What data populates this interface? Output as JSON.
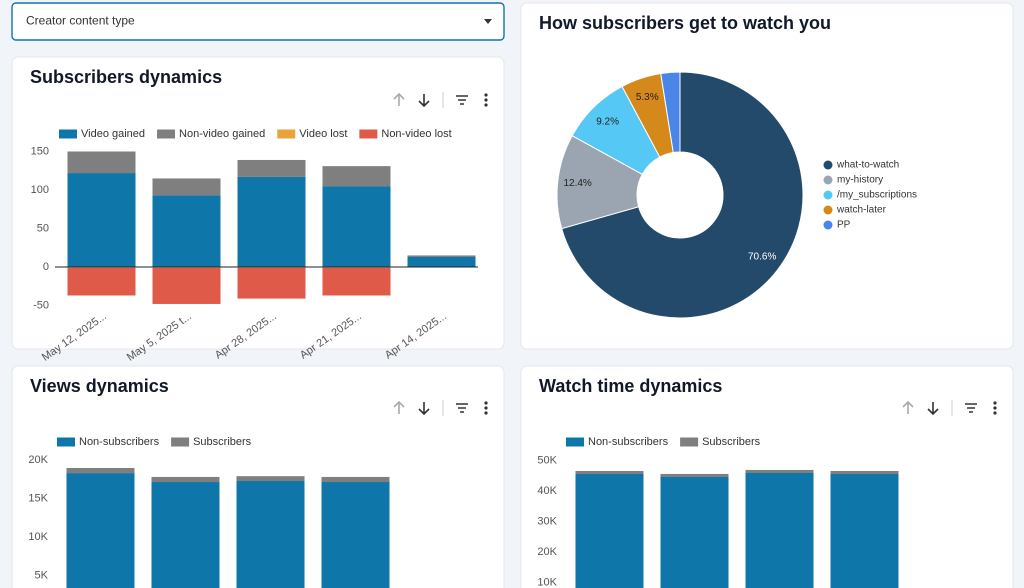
{
  "dropdown": "Creator content type",
  "chart_data": [
    {
      "type": "bar",
      "stacked": true,
      "title": "Subscribers dynamics",
      "categories": [
        "May 12, 2025...",
        "May 5, 2025 t...",
        "Apr 28, 2025...",
        "Apr 21, 2025...",
        "Apr 14, 2025..."
      ],
      "series": [
        {
          "name": "Video gained",
          "color": "#0e76a8",
          "values": [
            122,
            93,
            117,
            105,
            13
          ]
        },
        {
          "name": "Non-video gained",
          "color": "#7f7f7f",
          "values": [
            28,
            22,
            22,
            26,
            2
          ]
        },
        {
          "name": "Video lost",
          "color": "#e8a33d",
          "values": [
            -1,
            -1,
            -1,
            -1,
            0
          ]
        },
        {
          "name": "Non-video lost",
          "color": "#e05a4a",
          "values": [
            -36,
            -47,
            -40,
            -36,
            0
          ]
        }
      ],
      "ylim": [
        -55,
        155
      ],
      "yticks": [
        -50,
        0,
        50,
        100,
        150
      ],
      "legend": "top-left"
    },
    {
      "type": "pie",
      "donut": true,
      "title": "How subscribers get to watch you",
      "categories": [
        "what-to-watch",
        "my-history",
        "/my_subscriptions",
        "watch-later",
        "PP"
      ],
      "values": [
        70.6,
        12.4,
        9.2,
        5.3,
        2.5
      ],
      "value_labels": [
        "70.6%",
        "12.4%",
        "9.2%",
        "5.3%",
        null
      ],
      "colors": [
        "#234a6b",
        "#9aa5b1",
        "#55c8f5",
        "#d4891a",
        "#4a86e8"
      ],
      "legend": "right"
    },
    {
      "type": "bar",
      "stacked": true,
      "title": "Views dynamics",
      "categories": [
        null,
        null,
        null,
        null
      ],
      "series": [
        {
          "name": "Non-subscribers",
          "color": "#0e76a8",
          "values": [
            18300,
            17140,
            17270,
            17140
          ]
        },
        {
          "name": "Subscribers",
          "color": "#7f7f7f",
          "values": [
            660,
            660,
            630,
            660
          ]
        }
      ],
      "ylim": [
        0,
        21000
      ],
      "yticks": [
        {
          "value": 5000,
          "label": "5K"
        },
        {
          "value": 10000,
          "label": "10K"
        },
        {
          "value": 15000,
          "label": "15K"
        },
        {
          "value": 20000,
          "label": "20K"
        }
      ],
      "legend": "top-left"
    },
    {
      "type": "bar",
      "stacked": true,
      "title": "Watch time dynamics",
      "categories": [
        null,
        null,
        null,
        null
      ],
      "series": [
        {
          "name": "Non-subscribers",
          "color": "#0e76a8",
          "values": [
            45570,
            44590,
            45900,
            45570
          ]
        },
        {
          "name": "Subscribers",
          "color": "#7f7f7f",
          "values": [
            1000,
            1000,
            1000,
            1000
          ]
        }
      ],
      "ylim": [
        0,
        52000
      ],
      "yticks": [
        {
          "value": 10000,
          "label": "10K"
        },
        {
          "value": 20000,
          "label": "20K"
        },
        {
          "value": 30000,
          "label": "30K"
        },
        {
          "value": 40000,
          "label": "40K"
        },
        {
          "value": 50000,
          "label": "50K"
        }
      ],
      "legend": "top-left"
    }
  ]
}
